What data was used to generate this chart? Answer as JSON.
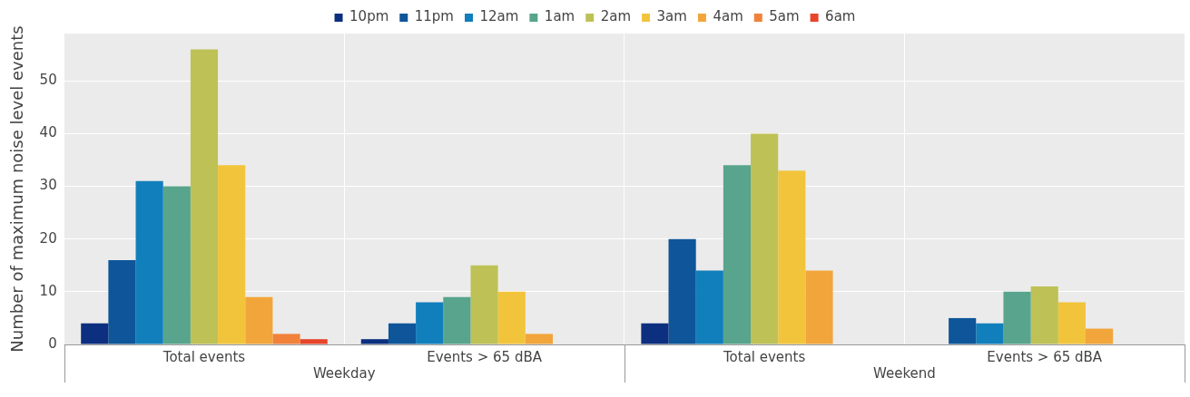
{
  "chart_data": {
    "type": "bar",
    "ylabel": "Number of maximum noise level events",
    "categories": [
      "Total events",
      "Events > 65 dBA",
      "Total events",
      "Events > 65 dBA"
    ],
    "annotations": [
      "Weekday",
      "Weekend"
    ],
    "series": [
      {
        "name": "10pm",
        "color": "#0d2f7f",
        "values": [
          4,
          1,
          4,
          null
        ]
      },
      {
        "name": "11pm",
        "color": "#0e5699",
        "values": [
          16,
          4,
          20,
          5
        ]
      },
      {
        "name": "12am",
        "color": "#117fbc",
        "values": [
          31,
          8,
          14,
          4
        ]
      },
      {
        "name": "1am",
        "color": "#58a48c",
        "values": [
          30,
          9,
          34,
          10
        ]
      },
      {
        "name": "2am",
        "color": "#bec256",
        "values": [
          56,
          15,
          40,
          11
        ]
      },
      {
        "name": "3am",
        "color": "#f2c43c",
        "values": [
          34,
          10,
          33,
          8
        ]
      },
      {
        "name": "4am",
        "color": "#f2a53b",
        "values": [
          9,
          2,
          14,
          3
        ]
      },
      {
        "name": "5am",
        "color": "#f0823a",
        "values": [
          2,
          null,
          null,
          null
        ]
      },
      {
        "name": "6am",
        "color": "#e8452b",
        "values": [
          1,
          null,
          null,
          null
        ]
      }
    ],
    "ylim": [
      0,
      59
    ],
    "yticks": [
      0,
      10,
      20,
      30,
      40,
      50
    ],
    "grid": true,
    "legend": "top"
  }
}
